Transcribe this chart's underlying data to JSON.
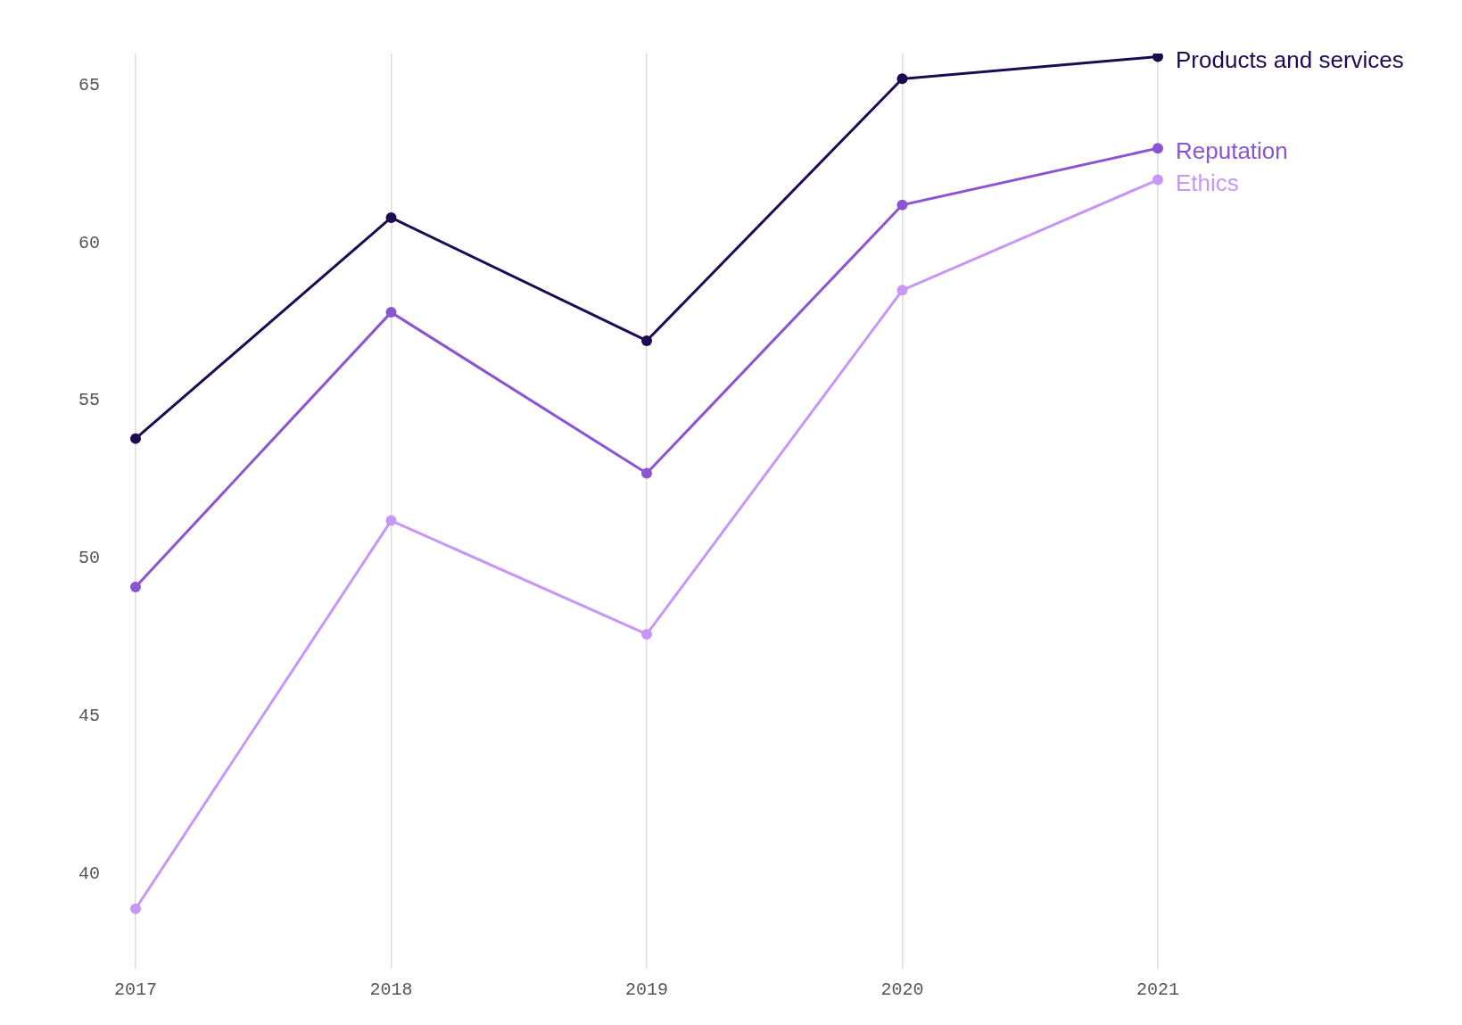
{
  "chart_data": {
    "type": "line",
    "categories": [
      "2017",
      "2018",
      "2019",
      "2020",
      "2021"
    ],
    "series": [
      {
        "name": "Products and services",
        "color": "#1e0a52",
        "values": [
          53.8,
          60.8,
          56.9,
          65.2,
          65.9
        ]
      },
      {
        "name": "Reputation",
        "color": "#8a55d0",
        "values": [
          49.1,
          57.8,
          52.7,
          61.2,
          63.0
        ]
      },
      {
        "name": "Ethics",
        "color": "#c797f7",
        "values": [
          38.9,
          51.2,
          47.6,
          58.5,
          62.0
        ]
      }
    ],
    "ylim": [
      37,
      66
    ],
    "yticks": [
      40,
      45,
      50,
      55,
      60,
      65
    ],
    "grid": "x",
    "legend": false,
    "marker": "circle",
    "line_style": "solid"
  }
}
